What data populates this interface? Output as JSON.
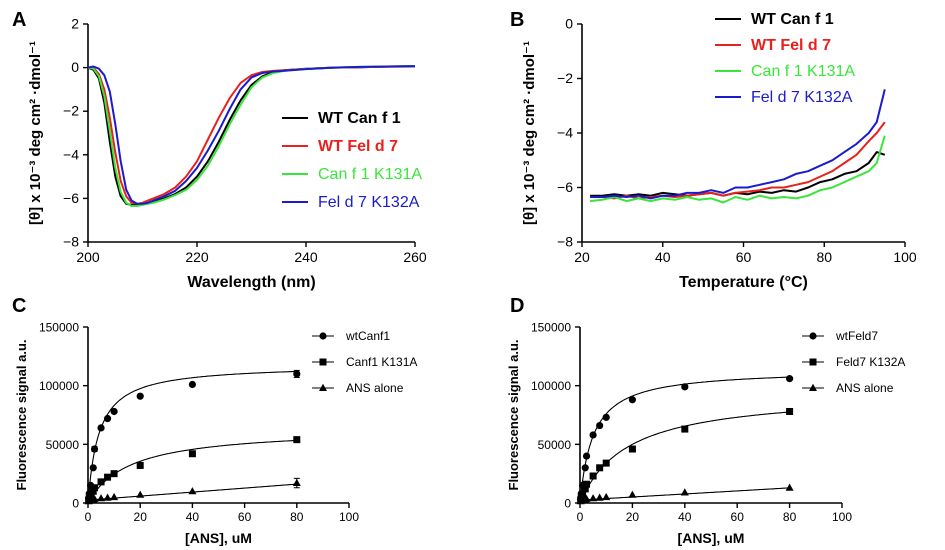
{
  "panel_labels": [
    "A",
    "B",
    "C",
    "D"
  ],
  "chart_data": [
    {
      "type": "line",
      "panel": "A",
      "title": "",
      "xlabel": "Wavelength (nm)",
      "ylabel": "[θ] x 10⁻³ deg cm² ·dmol⁻¹",
      "xlim": [
        200,
        260
      ],
      "ylim": [
        -8,
        2
      ],
      "xticks": [
        200,
        220,
        240,
        260
      ],
      "yticks": [
        -8,
        -6,
        -4,
        -2,
        0,
        2
      ],
      "legend_position": "right",
      "series": [
        {
          "name": "WT Can f 1",
          "color": "#000000",
          "bold": true,
          "x": [
            200,
            201,
            202,
            203,
            204,
            205,
            206,
            207,
            208,
            209,
            210,
            211,
            212,
            214,
            216,
            218,
            220,
            222,
            224,
            226,
            228,
            230,
            232,
            234,
            236,
            240,
            245,
            250,
            255,
            260
          ],
          "y": [
            0,
            -0.1,
            -0.5,
            -1.6,
            -3.4,
            -5.0,
            -5.9,
            -6.25,
            -6.3,
            -6.3,
            -6.25,
            -6.2,
            -6.15,
            -6.0,
            -5.8,
            -5.5,
            -5.0,
            -4.3,
            -3.4,
            -2.4,
            -1.5,
            -0.8,
            -0.4,
            -0.2,
            -0.12,
            -0.05,
            0,
            0.02,
            0.05,
            0.07
          ]
        },
        {
          "name": "WT Fel d 7",
          "color": "#e8211e",
          "bold": true,
          "x": [
            200,
            201,
            202,
            203,
            204,
            205,
            206,
            207,
            208,
            209,
            210,
            211,
            212,
            214,
            216,
            218,
            220,
            222,
            224,
            226,
            228,
            230,
            232,
            234,
            236,
            240,
            245,
            250,
            255,
            260
          ],
          "y": [
            0,
            0,
            -0.3,
            -1.0,
            -2.3,
            -3.9,
            -5.2,
            -5.9,
            -6.2,
            -6.25,
            -6.2,
            -6.1,
            -6.0,
            -5.8,
            -5.5,
            -5.0,
            -4.3,
            -3.3,
            -2.3,
            -1.4,
            -0.7,
            -0.35,
            -0.2,
            -0.15,
            -0.12,
            -0.06,
            0,
            0.02,
            0.04,
            0.05
          ]
        },
        {
          "name": "Can f 1 K131A",
          "color": "#39e639",
          "bold": false,
          "x": [
            200,
            201,
            202,
            203,
            204,
            205,
            206,
            207,
            208,
            209,
            210,
            211,
            212,
            214,
            216,
            218,
            220,
            222,
            224,
            226,
            228,
            230,
            232,
            234,
            236,
            240,
            245,
            250,
            255,
            260
          ],
          "y": [
            0,
            -0.05,
            -0.4,
            -1.3,
            -2.9,
            -4.6,
            -5.7,
            -6.2,
            -6.35,
            -6.35,
            -6.3,
            -6.25,
            -6.2,
            -6.05,
            -5.85,
            -5.6,
            -5.15,
            -4.5,
            -3.6,
            -2.6,
            -1.7,
            -0.9,
            -0.45,
            -0.25,
            -0.15,
            -0.06,
            0,
            0.03,
            0.05,
            0.07
          ]
        },
        {
          "name": "Fel d 7 K132A",
          "color": "#1b1bcc",
          "bold": false,
          "x": [
            200,
            201,
            202,
            203,
            204,
            205,
            206,
            207,
            208,
            209,
            210,
            211,
            212,
            214,
            216,
            218,
            220,
            222,
            224,
            226,
            228,
            230,
            232,
            234,
            236,
            240,
            245,
            250,
            255,
            260
          ],
          "y": [
            0,
            0.05,
            -0.05,
            -0.35,
            -1.1,
            -2.6,
            -4.3,
            -5.6,
            -6.1,
            -6.25,
            -6.25,
            -6.2,
            -6.1,
            -5.9,
            -5.65,
            -5.2,
            -4.6,
            -3.8,
            -2.9,
            -1.9,
            -1.0,
            -0.45,
            -0.25,
            -0.18,
            -0.14,
            -0.07,
            0,
            0.03,
            0.05,
            0.06
          ]
        }
      ]
    },
    {
      "type": "line",
      "panel": "B",
      "title": "",
      "xlabel": "Temperature (°C)",
      "ylabel": "[θ] x 10⁻³ deg cm² ·dmol⁻¹",
      "xlim": [
        20,
        100
      ],
      "ylim": [
        -8,
        0
      ],
      "xticks": [
        20,
        40,
        60,
        80,
        100
      ],
      "yticks": [
        -8,
        -6,
        -4,
        -2,
        0
      ],
      "legend_position": "top",
      "series": [
        {
          "name": "WT Can f 1",
          "color": "#000000",
          "bold": true,
          "x": [
            22,
            25,
            28,
            31,
            34,
            37,
            40,
            43,
            46,
            49,
            52,
            55,
            58,
            61,
            64,
            67,
            70,
            73,
            76,
            79,
            82,
            85,
            88,
            91,
            93,
            95
          ],
          "y": [
            -6.3,
            -6.3,
            -6.25,
            -6.3,
            -6.25,
            -6.3,
            -6.2,
            -6.25,
            -6.3,
            -6.25,
            -6.2,
            -6.3,
            -6.2,
            -6.25,
            -6.15,
            -6.2,
            -6.1,
            -6.15,
            -6.0,
            -5.8,
            -5.7,
            -5.5,
            -5.4,
            -5.1,
            -4.7,
            -4.8
          ]
        },
        {
          "name": "WT Fel d 7",
          "color": "#e8211e",
          "bold": true,
          "x": [
            22,
            25,
            28,
            31,
            34,
            37,
            40,
            43,
            46,
            49,
            52,
            55,
            58,
            61,
            64,
            67,
            70,
            73,
            76,
            79,
            82,
            85,
            88,
            91,
            93,
            95
          ],
          "y": [
            -6.35,
            -6.35,
            -6.4,
            -6.3,
            -6.4,
            -6.35,
            -6.3,
            -6.35,
            -6.3,
            -6.25,
            -6.2,
            -6.3,
            -6.2,
            -6.15,
            -6.1,
            -6.0,
            -6.0,
            -5.9,
            -5.8,
            -5.6,
            -5.4,
            -5.1,
            -4.8,
            -4.3,
            -4.0,
            -3.6
          ]
        },
        {
          "name": "Can f 1 K131A",
          "color": "#39e639",
          "bold": false,
          "x": [
            22,
            25,
            28,
            31,
            34,
            37,
            40,
            43,
            46,
            49,
            52,
            55,
            58,
            61,
            64,
            67,
            70,
            73,
            76,
            79,
            82,
            85,
            88,
            91,
            93,
            95
          ],
          "y": [
            -6.5,
            -6.45,
            -6.35,
            -6.5,
            -6.4,
            -6.5,
            -6.4,
            -6.45,
            -6.35,
            -6.45,
            -6.4,
            -6.55,
            -6.35,
            -6.45,
            -6.3,
            -6.4,
            -6.35,
            -6.4,
            -6.3,
            -6.1,
            -6.0,
            -5.8,
            -5.6,
            -5.4,
            -5.1,
            -4.1
          ]
        },
        {
          "name": "Fel d 7 K132A",
          "color": "#1b1bcc",
          "bold": false,
          "x": [
            22,
            25,
            28,
            31,
            34,
            37,
            40,
            43,
            46,
            49,
            52,
            55,
            58,
            61,
            64,
            67,
            70,
            73,
            76,
            79,
            82,
            85,
            88,
            91,
            93,
            95
          ],
          "y": [
            -6.35,
            -6.35,
            -6.3,
            -6.35,
            -6.3,
            -6.4,
            -6.3,
            -6.3,
            -6.2,
            -6.2,
            -6.1,
            -6.2,
            -6.0,
            -6.0,
            -5.9,
            -5.8,
            -5.7,
            -5.5,
            -5.4,
            -5.2,
            -5.0,
            -4.7,
            -4.4,
            -4.0,
            -3.6,
            -2.4
          ]
        }
      ]
    },
    {
      "type": "scatter",
      "panel": "C",
      "title": "",
      "xlabel": "[ANS], uM",
      "ylabel": "Fluorescence signal a.u.",
      "xlim": [
        0,
        100
      ],
      "ylim": [
        0,
        150000
      ],
      "xticks": [
        0,
        20,
        40,
        60,
        80,
        100
      ],
      "yticks": [
        0,
        50000,
        100000,
        150000
      ],
      "legend_position": "top-right",
      "series": [
        {
          "name": "wtCanf1",
          "marker": "circle",
          "x": [
            0.25,
            0.5,
            1,
            2,
            2.5,
            5,
            7.5,
            10,
            20,
            40,
            80
          ],
          "y": [
            4000,
            8000,
            15000,
            30000,
            46000,
            64000,
            72000,
            78000,
            91000,
            101000,
            110000
          ],
          "err": [
            0,
            0,
            0,
            0,
            2000,
            0,
            0,
            0,
            0,
            0,
            3000
          ],
          "fit": {
            "Bmax": 118000,
            "Kd": 4.2
          }
        },
        {
          "name": "Canf1 K131A",
          "marker": "square",
          "x": [
            0.25,
            0.5,
            1,
            2,
            2.5,
            5,
            7.5,
            10,
            20,
            40,
            80
          ],
          "y": [
            2500,
            4000,
            6000,
            10000,
            13000,
            18000,
            22000,
            25000,
            32000,
            42000,
            54000
          ],
          "err": [
            0,
            0,
            0,
            0,
            0,
            0,
            0,
            0,
            0,
            0,
            2000
          ],
          "fit": {
            "Bmax": 64000,
            "Kd": 16
          }
        },
        {
          "name": "ANS alone",
          "marker": "triangle",
          "x": [
            0.25,
            0.5,
            1,
            2,
            2.5,
            5,
            7.5,
            10,
            20,
            40,
            80
          ],
          "y": [
            1500,
            2000,
            2500,
            3000,
            3500,
            4000,
            4500,
            5000,
            7000,
            10000,
            17000
          ],
          "err": [
            0,
            0,
            0,
            0,
            0,
            0,
            0,
            0,
            0,
            0,
            4000
          ],
          "fit": {
            "slope": 170,
            "intercept": 2500
          }
        }
      ]
    },
    {
      "type": "scatter",
      "panel": "D",
      "title": "",
      "xlabel": "[ANS], uM",
      "ylabel": "Fluorescence signal a.u.",
      "xlim": [
        0,
        100
      ],
      "ylim": [
        0,
        150000
      ],
      "xticks": [
        0,
        20,
        40,
        60,
        80,
        100
      ],
      "yticks": [
        0,
        50000,
        100000,
        150000
      ],
      "legend_position": "top-right",
      "series": [
        {
          "name": "wtFeld7",
          "marker": "circle",
          "x": [
            0.25,
            0.5,
            1,
            2,
            2.5,
            5,
            7.5,
            10,
            20,
            40,
            80
          ],
          "y": [
            4000,
            8000,
            15000,
            30000,
            40000,
            58000,
            66000,
            73000,
            88000,
            99000,
            106000
          ],
          "err": [
            0,
            0,
            0,
            0,
            0,
            0,
            0,
            0,
            0,
            0,
            0
          ],
          "fit": {
            "Bmax": 114000,
            "Kd": 5.0
          }
        },
        {
          "name": "Feld7 K132A",
          "marker": "square",
          "x": [
            0.25,
            0.5,
            1,
            2,
            2.5,
            5,
            7.5,
            10,
            20,
            40,
            80
          ],
          "y": [
            2500,
            4500,
            7000,
            12000,
            16000,
            23000,
            30000,
            34000,
            46000,
            63000,
            78000
          ],
          "err": [
            0,
            0,
            0,
            0,
            0,
            0,
            0,
            0,
            0,
            0,
            0
          ],
          "fit": {
            "Bmax": 95000,
            "Kd": 18
          }
        },
        {
          "name": "ANS alone",
          "marker": "triangle",
          "x": [
            0.25,
            0.5,
            1,
            2,
            2.5,
            5,
            7.5,
            10,
            20,
            40,
            80
          ],
          "y": [
            1500,
            2000,
            2500,
            3000,
            3500,
            4000,
            4500,
            5000,
            7000,
            9000,
            13000
          ],
          "err": [
            0,
            0,
            0,
            0,
            0,
            0,
            0,
            0,
            0,
            0,
            0
          ],
          "fit": {
            "slope": 130,
            "intercept": 2500
          }
        }
      ]
    }
  ]
}
